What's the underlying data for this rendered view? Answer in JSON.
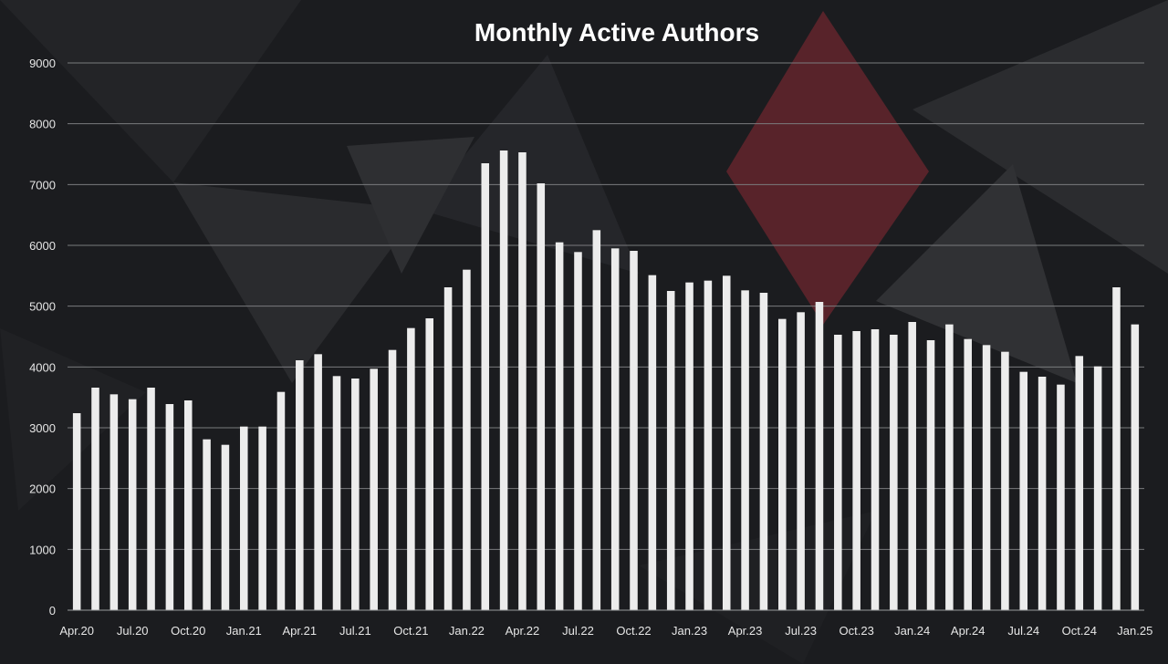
{
  "chart_data": {
    "type": "bar",
    "title": "Monthly Active Authors",
    "xlabel": "",
    "ylabel": "",
    "ylim": [
      0,
      9000
    ],
    "yticks": [
      0,
      1000,
      2000,
      3000,
      4000,
      5000,
      6000,
      7000,
      8000,
      9000
    ],
    "grid": true,
    "legend": "none",
    "bar_color": "#ececec",
    "background_color": "#1b1c1f",
    "accent_color": "#8b2a33",
    "x_tick_labels": [
      "Apr.20",
      "Jul.20",
      "Oct.20",
      "Jan.21",
      "Apr.21",
      "Jul.21",
      "Oct.21",
      "Jan.22",
      "Apr.22",
      "Jul.22",
      "Oct.22",
      "Jan.23",
      "Apr.23",
      "Jul.23",
      "Oct.23",
      "Jan.24",
      "Apr.24",
      "Jul.24",
      "Oct.24",
      "Jan.25"
    ],
    "categories": [
      "Apr.20",
      "May.20",
      "Jun.20",
      "Jul.20",
      "Aug.20",
      "Sep.20",
      "Oct.20",
      "Nov.20",
      "Dec.20",
      "Jan.21",
      "Feb.21",
      "Mar.21",
      "Apr.21",
      "May.21",
      "Jun.21",
      "Jul.21",
      "Aug.21",
      "Sep.21",
      "Oct.21",
      "Nov.21",
      "Dec.21",
      "Jan.22",
      "Feb.22",
      "Mar.22",
      "Apr.22",
      "May.22",
      "Jun.22",
      "Jul.22",
      "Aug.22",
      "Sep.22",
      "Oct.22",
      "Nov.22",
      "Dec.22",
      "Jan.23",
      "Feb.23",
      "Mar.23",
      "Apr.23",
      "May.23",
      "Jun.23",
      "Jul.23",
      "Aug.23",
      "Sep.23",
      "Oct.23",
      "Nov.23",
      "Dec.23",
      "Jan.24",
      "Feb.24",
      "Mar.24",
      "Apr.24",
      "May.24",
      "Jun.24",
      "Jul.24",
      "Aug.24",
      "Sep.24",
      "Oct.24",
      "Nov.24",
      "Dec.24",
      "Jan.25"
    ],
    "values": [
      3240,
      3660,
      3550,
      3470,
      3660,
      3390,
      3450,
      2810,
      2720,
      3020,
      3020,
      3590,
      4110,
      4210,
      3850,
      3810,
      3970,
      4280,
      4640,
      4800,
      5310,
      5600,
      7350,
      7560,
      7530,
      7020,
      6050,
      5890,
      6250,
      5950,
      5910,
      5510,
      5250,
      5390,
      5420,
      5500,
      5260,
      5220,
      4790,
      4900,
      5070,
      4530,
      4590,
      4620,
      4530,
      4740,
      4440,
      4700,
      4460,
      4360,
      4250,
      3920,
      3840,
      3710,
      4180,
      4010,
      5310,
      4700
    ]
  }
}
